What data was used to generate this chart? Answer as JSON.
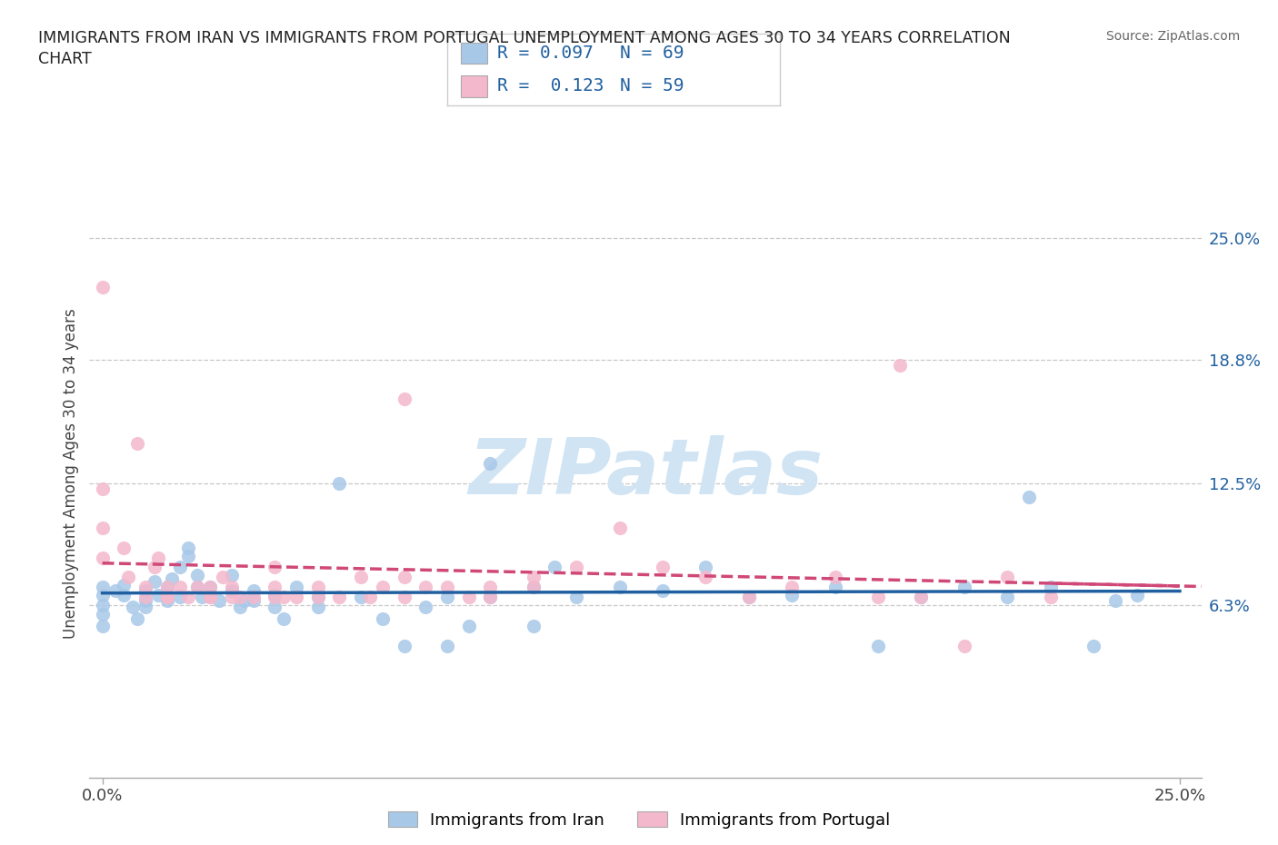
{
  "title_line1": "IMMIGRANTS FROM IRAN VS IMMIGRANTS FROM PORTUGAL UNEMPLOYMENT AMONG AGES 30 TO 34 YEARS CORRELATION",
  "title_line2": "CHART",
  "source_text": "Source: ZipAtlas.com",
  "ylabel": "Unemployment Among Ages 30 to 34 years",
  "xlim": [
    -0.003,
    0.255
  ],
  "ylim": [
    -0.025,
    0.285
  ],
  "x_tick_labels": [
    "0.0%",
    "25.0%"
  ],
  "y_tick_labels": [
    "6.3%",
    "12.5%",
    "18.8%",
    "25.0%"
  ],
  "y_tick_values": [
    0.063,
    0.125,
    0.188,
    0.25
  ],
  "x_tick_values": [
    0.0,
    0.25
  ],
  "color_iran": "#a8c8e8",
  "color_portugal": "#f4b8cc",
  "color_iran_line": "#2060a0",
  "color_portugal_line": "#d04878",
  "watermark_color": "#d0e4f4",
  "R_iran": 0.097,
  "N_iran": 69,
  "R_portugal": 0.123,
  "N_portugal": 59,
  "legend_label_iran": "Immigrants from Iran",
  "legend_label_portugal": "Immigrants from Portugal",
  "iran_x": [
    0.0,
    0.0,
    0.0,
    0.0,
    0.0,
    0.003,
    0.005,
    0.005,
    0.007,
    0.008,
    0.01,
    0.01,
    0.01,
    0.012,
    0.013,
    0.015,
    0.015,
    0.016,
    0.018,
    0.018,
    0.02,
    0.02,
    0.022,
    0.022,
    0.023,
    0.025,
    0.025,
    0.027,
    0.03,
    0.03,
    0.032,
    0.033,
    0.035,
    0.035,
    0.04,
    0.04,
    0.042,
    0.045,
    0.05,
    0.05,
    0.055,
    0.06,
    0.065,
    0.07,
    0.075,
    0.08,
    0.085,
    0.09,
    0.09,
    0.1,
    0.1,
    0.105,
    0.11,
    0.12,
    0.13,
    0.14,
    0.15,
    0.16,
    0.17,
    0.18,
    0.19,
    0.2,
    0.21,
    0.215,
    0.22,
    0.23,
    0.235,
    0.24,
    0.08
  ],
  "iran_y": [
    0.063,
    0.068,
    0.072,
    0.058,
    0.052,
    0.07,
    0.068,
    0.073,
    0.062,
    0.056,
    0.07,
    0.065,
    0.062,
    0.075,
    0.068,
    0.065,
    0.072,
    0.076,
    0.082,
    0.067,
    0.088,
    0.092,
    0.078,
    0.072,
    0.067,
    0.068,
    0.072,
    0.065,
    0.07,
    0.078,
    0.062,
    0.065,
    0.07,
    0.065,
    0.062,
    0.068,
    0.056,
    0.072,
    0.067,
    0.062,
    0.125,
    0.067,
    0.056,
    0.042,
    0.062,
    0.067,
    0.052,
    0.135,
    0.067,
    0.052,
    0.072,
    0.082,
    0.067,
    0.072,
    0.07,
    0.082,
    0.067,
    0.068,
    0.072,
    0.042,
    0.067,
    0.072,
    0.067,
    0.118,
    0.072,
    0.042,
    0.065,
    0.068,
    0.042
  ],
  "portugal_x": [
    0.0,
    0.0,
    0.0,
    0.0,
    0.005,
    0.006,
    0.008,
    0.01,
    0.01,
    0.012,
    0.013,
    0.015,
    0.015,
    0.018,
    0.02,
    0.022,
    0.025,
    0.025,
    0.028,
    0.03,
    0.032,
    0.035,
    0.04,
    0.04,
    0.042,
    0.045,
    0.05,
    0.05,
    0.055,
    0.06,
    0.062,
    0.065,
    0.07,
    0.07,
    0.075,
    0.08,
    0.085,
    0.09,
    0.09,
    0.1,
    0.1,
    0.11,
    0.12,
    0.13,
    0.14,
    0.15,
    0.16,
    0.17,
    0.18,
    0.185,
    0.19,
    0.2,
    0.21,
    0.22,
    0.07,
    0.03,
    0.04,
    0.015,
    0.025
  ],
  "portugal_y": [
    0.225,
    0.122,
    0.102,
    0.087,
    0.092,
    0.077,
    0.145,
    0.067,
    0.072,
    0.082,
    0.087,
    0.067,
    0.072,
    0.072,
    0.067,
    0.072,
    0.072,
    0.067,
    0.077,
    0.067,
    0.067,
    0.067,
    0.067,
    0.072,
    0.067,
    0.067,
    0.067,
    0.072,
    0.067,
    0.077,
    0.067,
    0.072,
    0.077,
    0.067,
    0.072,
    0.072,
    0.067,
    0.067,
    0.072,
    0.072,
    0.077,
    0.082,
    0.102,
    0.082,
    0.077,
    0.067,
    0.072,
    0.077,
    0.067,
    0.185,
    0.067,
    0.042,
    0.077,
    0.067,
    0.168,
    0.072,
    0.082,
    0.067,
    0.067
  ]
}
